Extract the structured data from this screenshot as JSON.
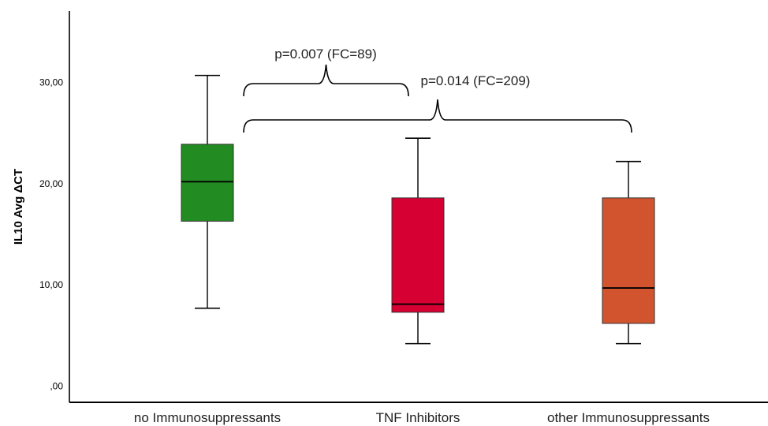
{
  "chart_data": {
    "type": "box",
    "title": "",
    "xlabel": "",
    "ylabel": "IL10 Avg ΔCT",
    "ylim": [
      0,
      35.5
    ],
    "yticks": [
      0,
      10,
      20,
      30
    ],
    "ytick_labels": [
      ",00",
      "10,00",
      "20,00",
      "30,00"
    ],
    "grid": false,
    "categories": [
      "no Immunosuppressants",
      "TNF Inhibitors",
      "other Immunosuppressants"
    ],
    "boxes": [
      {
        "category": "no Immunosuppressants",
        "min": 7.7,
        "q1": 16.3,
        "median": 20.2,
        "q3": 23.9,
        "max": 30.7,
        "color": "#228b22"
      },
      {
        "category": "TNF Inhibitors",
        "min": 4.2,
        "q1": 7.3,
        "median": 8.1,
        "q3": 18.6,
        "max": 24.5,
        "color": "#d70032"
      },
      {
        "category": "other Immunosuppressants",
        "min": 4.2,
        "q1": 6.2,
        "median": 9.7,
        "q3": 18.6,
        "max": 22.2,
        "color": "#d2542e"
      }
    ],
    "annotations": [
      {
        "text": "p=0.007 (FC=89)",
        "from": "no Immunosuppressants",
        "to": "TNF Inhibitors"
      },
      {
        "text": "p=0.014 (FC=209)",
        "from": "no Immunosuppressants",
        "to": "other Immunosuppressants"
      }
    ]
  }
}
